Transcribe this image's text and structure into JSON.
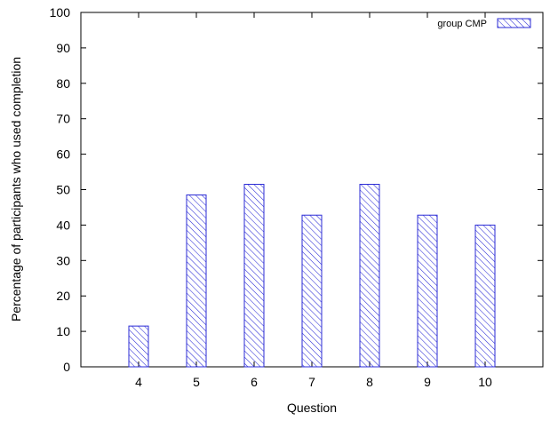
{
  "chart_data": {
    "type": "bar",
    "categories": [
      "4",
      "5",
      "6",
      "7",
      "8",
      "9",
      "10"
    ],
    "series": [
      {
        "name": "group CMP",
        "values": [
          11.5,
          48.5,
          51.5,
          42.8,
          51.5,
          42.8,
          40.0
        ]
      }
    ],
    "title": "",
    "xlabel": "Question",
    "ylabel": "Percentage of participants who used completion",
    "ylim": [
      0,
      100
    ],
    "yticks": [
      0,
      10,
      20,
      30,
      40,
      50,
      60,
      70,
      80,
      90,
      100
    ],
    "grid": false,
    "legend_position": "top-right",
    "bar_color": "#2b2bd6",
    "bar_fill": "diagonal-hatch"
  }
}
